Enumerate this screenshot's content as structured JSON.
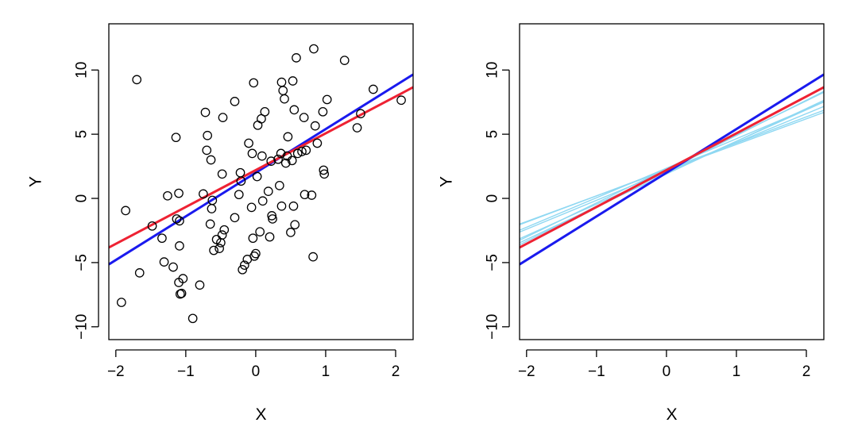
{
  "colors": {
    "true_line": "#1a1aee",
    "fitted_line": "#ee2233",
    "sample_lines": "#8fd8f2",
    "points": "#000000"
  },
  "chart_data": [
    {
      "type": "scatter",
      "title": "",
      "xlabel": "X",
      "ylabel": "Y",
      "xlim": [
        -2.1,
        2.25
      ],
      "ylim": [
        -11,
        13.6
      ],
      "x_ticks": [
        -2,
        -1,
        0,
        1,
        2
      ],
      "y_ticks": [
        -10,
        -5,
        0,
        5,
        10
      ],
      "x_tick_labels": [
        "−2",
        "−1",
        "0",
        "1",
        "2"
      ],
      "y_tick_labels": [
        "−10",
        "−5",
        "0",
        "5",
        "10"
      ],
      "grid": false,
      "points": [
        [
          -1.92,
          -8.1
        ],
        [
          -1.86,
          -0.95
        ],
        [
          -1.7,
          9.25
        ],
        [
          -1.66,
          -5.8
        ],
        [
          -1.48,
          -2.15
        ],
        [
          -1.34,
          -3.1
        ],
        [
          -1.31,
          -4.95
        ],
        [
          -1.26,
          0.2
        ],
        [
          -1.18,
          -5.35
        ],
        [
          -1.14,
          4.75
        ],
        [
          -1.13,
          -1.6
        ],
        [
          -1.1,
          -6.55
        ],
        [
          -1.1,
          0.4
        ],
        [
          -1.08,
          -7.45
        ],
        [
          -1.06,
          -7.4
        ],
        [
          -1.04,
          -6.25
        ],
        [
          -1.09,
          -1.75
        ],
        [
          -1.09,
          -3.7
        ],
        [
          -0.9,
          -9.35
        ],
        [
          -0.8,
          -6.75
        ],
        [
          -0.75,
          0.35
        ],
        [
          -0.72,
          6.7
        ],
        [
          -0.7,
          3.75
        ],
        [
          -0.69,
          4.9
        ],
        [
          -0.65,
          -2.0
        ],
        [
          -0.64,
          3.0
        ],
        [
          -0.63,
          -0.8
        ],
        [
          -0.62,
          -0.15
        ],
        [
          -0.6,
          -4.05
        ],
        [
          -0.56,
          -3.2
        ],
        [
          -0.52,
          -3.9
        ],
        [
          -0.5,
          -3.45
        ],
        [
          -0.48,
          -2.85
        ],
        [
          -0.48,
          1.9
        ],
        [
          -0.47,
          6.3
        ],
        [
          -0.45,
          -2.45
        ],
        [
          -0.3,
          -1.5
        ],
        [
          -0.3,
          7.55
        ],
        [
          -0.24,
          0.3
        ],
        [
          -0.22,
          2.0
        ],
        [
          -0.21,
          1.35
        ],
        [
          -0.19,
          -5.55
        ],
        [
          -0.16,
          -5.2
        ],
        [
          -0.12,
          -4.75
        ],
        [
          -0.1,
          4.3
        ],
        [
          -0.06,
          -0.7
        ],
        [
          -0.05,
          3.5
        ],
        [
          -0.04,
          -3.1
        ],
        [
          -0.03,
          9.0
        ],
        [
          -0.02,
          -4.5
        ],
        [
          0.0,
          -4.3
        ],
        [
          0.02,
          1.7
        ],
        [
          0.03,
          5.7
        ],
        [
          0.06,
          -2.6
        ],
        [
          0.08,
          6.2
        ],
        [
          0.09,
          3.3
        ],
        [
          0.1,
          -0.2
        ],
        [
          0.13,
          6.75
        ],
        [
          0.18,
          0.55
        ],
        [
          0.2,
          -3.0
        ],
        [
          0.22,
          2.9
        ],
        [
          0.23,
          -1.35
        ],
        [
          0.24,
          -1.6
        ],
        [
          0.32,
          3.05
        ],
        [
          0.34,
          1.0
        ],
        [
          0.36,
          3.5
        ],
        [
          0.37,
          9.05
        ],
        [
          0.37,
          -0.6
        ],
        [
          0.39,
          8.4
        ],
        [
          0.41,
          7.75
        ],
        [
          0.43,
          2.75
        ],
        [
          0.45,
          3.3
        ],
        [
          0.46,
          4.8
        ],
        [
          0.5,
          -2.65
        ],
        [
          0.52,
          2.95
        ],
        [
          0.53,
          9.15
        ],
        [
          0.54,
          -0.6
        ],
        [
          0.55,
          6.9
        ],
        [
          0.56,
          -2.05
        ],
        [
          0.58,
          10.95
        ],
        [
          0.6,
          3.5
        ],
        [
          0.66,
          3.65
        ],
        [
          0.69,
          6.3
        ],
        [
          0.7,
          0.3
        ],
        [
          0.72,
          3.75
        ],
        [
          0.8,
          0.25
        ],
        [
          0.82,
          -4.55
        ],
        [
          0.83,
          11.65
        ],
        [
          0.85,
          5.65
        ],
        [
          0.88,
          4.3
        ],
        [
          0.96,
          6.75
        ],
        [
          0.97,
          2.2
        ],
        [
          0.98,
          1.9
        ],
        [
          1.02,
          7.7
        ],
        [
          1.27,
          10.75
        ],
        [
          1.45,
          5.5
        ],
        [
          1.5,
          6.6
        ],
        [
          1.68,
          8.5
        ],
        [
          2.08,
          7.65
        ]
      ],
      "lines": [
        {
          "role": "true",
          "intercept": 2.0,
          "slope": 3.4
        },
        {
          "role": "fitted",
          "intercept": 2.2,
          "slope": 2.87
        }
      ]
    },
    {
      "type": "line",
      "title": "",
      "xlabel": "X",
      "ylabel": "Y",
      "xlim": [
        -2.1,
        2.25
      ],
      "ylim": [
        -11,
        13.6
      ],
      "x_ticks": [
        -2,
        -1,
        0,
        1,
        2
      ],
      "y_ticks": [
        -10,
        -5,
        0,
        5,
        10
      ],
      "x_tick_labels": [
        "−2",
        "−1",
        "0",
        "1",
        "2"
      ],
      "y_tick_labels": [
        "−10",
        "−5",
        "0",
        "5",
        "10"
      ],
      "grid": false,
      "lines": [
        {
          "role": "sample",
          "intercept": 2.2,
          "slope": 2.0
        },
        {
          "role": "sample",
          "intercept": 2.35,
          "slope": 2.3
        },
        {
          "role": "sample",
          "intercept": 2.3,
          "slope": 2.65
        },
        {
          "role": "sample",
          "intercept": 1.95,
          "slope": 3.4
        },
        {
          "role": "sample",
          "intercept": 2.0,
          "slope": 2.45
        },
        {
          "role": "sample",
          "intercept": 2.1,
          "slope": 2.25
        },
        {
          "role": "sample",
          "intercept": 2.2,
          "slope": 2.85
        },
        {
          "role": "sample",
          "intercept": 2.25,
          "slope": 2.05
        },
        {
          "role": "sample",
          "intercept": 1.9,
          "slope": 2.55
        },
        {
          "role": "sample",
          "intercept": 2.15,
          "slope": 2.75
        },
        {
          "role": "true",
          "intercept": 2.0,
          "slope": 3.4
        },
        {
          "role": "fitted",
          "intercept": 2.2,
          "slope": 2.87
        }
      ]
    }
  ]
}
